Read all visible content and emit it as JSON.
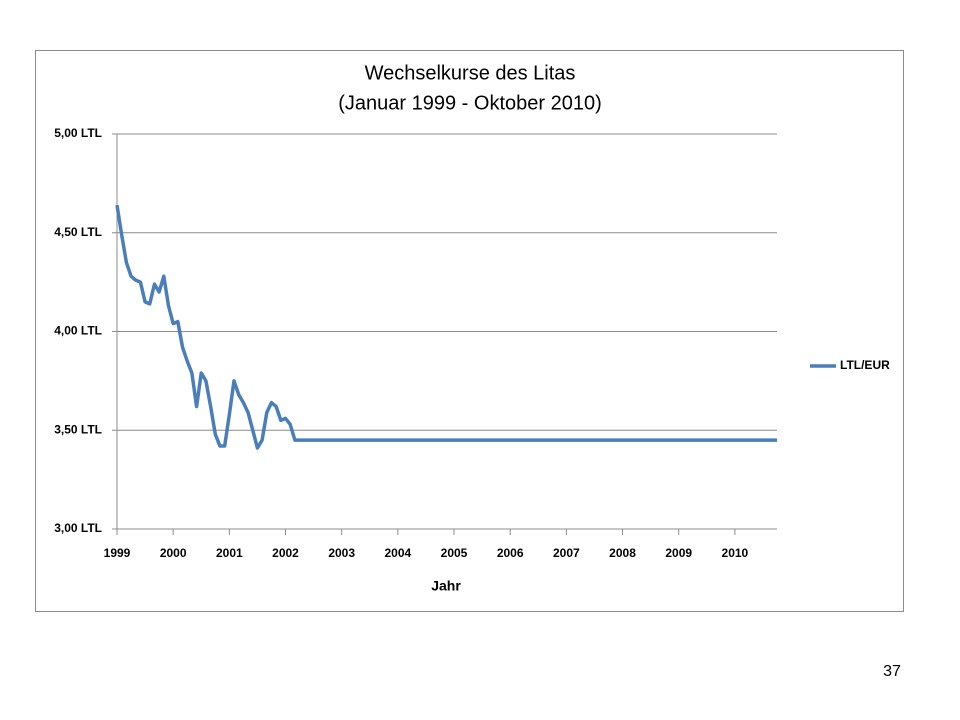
{
  "chart_data": {
    "type": "line",
    "title": "Wechselkurse des Litas",
    "subtitle": "(Januar 1999 - Oktober 2010)",
    "x_label": "Jahr",
    "x": [
      1999,
      1999.083,
      1999.167,
      1999.25,
      1999.333,
      1999.417,
      1999.5,
      1999.583,
      1999.667,
      1999.75,
      1999.833,
      1999.917,
      2000,
      2000.083,
      2000.167,
      2000.25,
      2000.333,
      2000.417,
      2000.5,
      2000.583,
      2000.667,
      2000.75,
      2000.833,
      2000.917,
      2001,
      2001.083,
      2001.167,
      2001.25,
      2001.333,
      2001.417,
      2001.5,
      2001.583,
      2001.667,
      2001.75,
      2001.833,
      2001.917,
      2002,
      2002.083,
      2002.167,
      2010.75
    ],
    "series": [
      {
        "name": "LTL/EUR",
        "color": "#4a7ebb",
        "values": [
          4.64,
          4.49,
          4.35,
          4.28,
          4.26,
          4.25,
          4.15,
          4.14,
          4.24,
          4.2,
          4.28,
          4.13,
          4.04,
          4.05,
          3.92,
          3.85,
          3.79,
          3.62,
          3.79,
          3.75,
          3.62,
          3.48,
          3.42,
          3.42,
          3.58,
          3.75,
          3.68,
          3.64,
          3.59,
          3.5,
          3.41,
          3.45,
          3.59,
          3.64,
          3.62,
          3.55,
          3.56,
          3.53,
          3.45,
          3.45
        ]
      }
    ],
    "xlim": [
      1999,
      2010.75
    ],
    "xticks": [
      1999,
      2000,
      2001,
      2002,
      2003,
      2004,
      2005,
      2006,
      2007,
      2008,
      2009,
      2010
    ],
    "ylim": [
      3,
      5
    ],
    "yticks": [
      {
        "value": 3,
        "label": "3,00 LTL"
      },
      {
        "value": 3.5,
        "label": "3,50 LTL"
      },
      {
        "value": 4,
        "label": "4,00 LTL"
      },
      {
        "value": 4.5,
        "label": "4,50 LTL"
      },
      {
        "value": 5,
        "label": "5,00 LTL"
      }
    ],
    "grid": true,
    "legend": "right"
  },
  "slide_number": "37"
}
